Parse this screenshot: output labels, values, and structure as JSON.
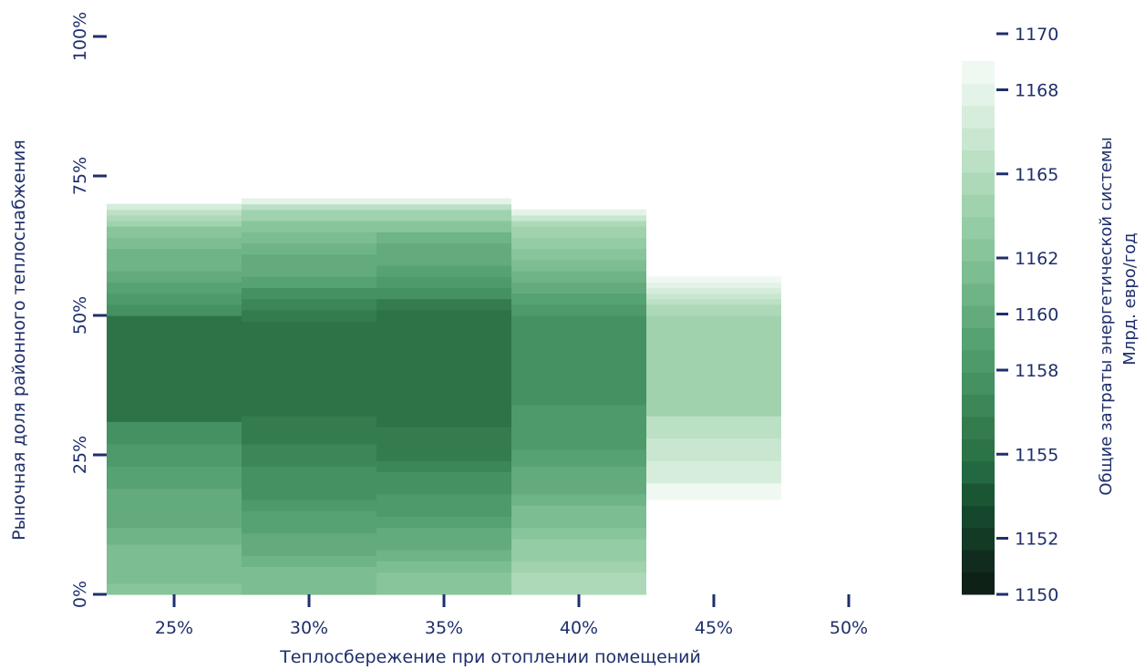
{
  "chart_data": {
    "type": "heatmap",
    "xlabel": "Теплосбережение при отоплении помещений",
    "ylabel": "Рыночная доля районного теплоснабжения",
    "x_categories": [
      "25%",
      "30%",
      "35%",
      "40%",
      "45%",
      "50%"
    ],
    "x_values": [
      25,
      30,
      35,
      40,
      45,
      50
    ],
    "y_ticks": [
      "0%",
      "25%",
      "50%",
      "75%",
      "100%"
    ],
    "y_tick_values": [
      0,
      25,
      50,
      75,
      100
    ],
    "ylim": [
      0,
      100
    ],
    "colorbar": {
      "label_line1": "Общие затраты энергетической системы",
      "label_line2": "Млрд. евро/год",
      "range": [
        1150,
        1170
      ],
      "ticks": [
        "1150",
        "1152",
        "1155",
        "1158",
        "1160",
        "1162",
        "1165",
        "1168",
        "1170"
      ],
      "tick_values": [
        1150,
        1152,
        1155,
        1158,
        1160,
        1162,
        1165,
        1168,
        1170
      ],
      "bins": 24,
      "colors": [
        "#0e2117",
        "#112b1e",
        "#123a25",
        "#14472b",
        "#1a5634",
        "#226840",
        "#2c7448",
        "#347c4e",
        "#3c8658",
        "#459161",
        "#4e9a6a",
        "#57a272",
        "#63ab7c",
        "#6fb486",
        "#7cbd91",
        "#88c59b",
        "#94cca5",
        "#a0d2ae",
        "#add9b8",
        "#bbe0c4",
        "#c9e7d0",
        "#d6eddb",
        "#e3f3e7",
        "#f0f8f2"
      ]
    },
    "columns": [
      {
        "x": "25%",
        "cells": [
          {
            "y0": 0,
            "y1": 2,
            "v": 1162.5
          },
          {
            "y0": 2,
            "y1": 5,
            "v": 1162.3
          },
          {
            "y0": 5,
            "y1": 9,
            "v": 1161.8
          },
          {
            "y0": 9,
            "y1": 12,
            "v": 1161.2
          },
          {
            "y0": 12,
            "y1": 15,
            "v": 1160.8
          },
          {
            "y0": 15,
            "y1": 19,
            "v": 1160.2
          },
          {
            "y0": 19,
            "y1": 23,
            "v": 1159.6
          },
          {
            "y0": 23,
            "y1": 27,
            "v": 1158.9
          },
          {
            "y0": 27,
            "y1": 31,
            "v": 1158.2
          },
          {
            "y0": 31,
            "y1": 37,
            "v": 1155.8
          },
          {
            "y0": 37,
            "y1": 43,
            "v": 1155.0
          },
          {
            "y0": 43,
            "y1": 50,
            "v": 1155.8
          },
          {
            "y0": 50,
            "y1": 52,
            "v": 1157.8
          },
          {
            "y0": 52,
            "y1": 54,
            "v": 1158.5
          },
          {
            "y0": 54,
            "y1": 56,
            "v": 1159.2
          },
          {
            "y0": 56,
            "y1": 58,
            "v": 1160.2
          },
          {
            "y0": 58,
            "y1": 60,
            "v": 1161.0
          },
          {
            "y0": 60,
            "y1": 62,
            "v": 1161.5
          },
          {
            "y0": 62,
            "y1": 64,
            "v": 1162.3
          },
          {
            "y0": 64,
            "y1": 66,
            "v": 1163.2
          },
          {
            "y0": 66,
            "y1": 67,
            "v": 1164.2
          },
          {
            "y0": 67,
            "y1": 68,
            "v": 1165.2
          },
          {
            "y0": 68,
            "y1": 69,
            "v": 1166.5
          },
          {
            "y0": 69,
            "y1": 70,
            "v": 1168.2
          }
        ]
      },
      {
        "x": "30%",
        "cells": [
          {
            "y0": 0,
            "y1": 2,
            "v": 1162.3
          },
          {
            "y0": 2,
            "y1": 5,
            "v": 1161.8
          },
          {
            "y0": 5,
            "y1": 7,
            "v": 1161.2
          },
          {
            "y0": 7,
            "y1": 9,
            "v": 1160.8
          },
          {
            "y0": 9,
            "y1": 11,
            "v": 1160.2
          },
          {
            "y0": 11,
            "y1": 13,
            "v": 1159.8
          },
          {
            "y0": 13,
            "y1": 15,
            "v": 1159.2
          },
          {
            "y0": 15,
            "y1": 17,
            "v": 1158.8
          },
          {
            "y0": 17,
            "y1": 20,
            "v": 1158.2
          },
          {
            "y0": 20,
            "y1": 23,
            "v": 1157.5
          },
          {
            "y0": 23,
            "y1": 27,
            "v": 1156.8
          },
          {
            "y0": 27,
            "y1": 32,
            "v": 1156.0
          },
          {
            "y0": 32,
            "y1": 38,
            "v": 1155.0
          },
          {
            "y0": 38,
            "y1": 49,
            "v": 1155.0
          },
          {
            "y0": 49,
            "y1": 51,
            "v": 1156.0
          },
          {
            "y0": 51,
            "y1": 53,
            "v": 1157.2
          },
          {
            "y0": 53,
            "y1": 55,
            "v": 1158.2
          },
          {
            "y0": 55,
            "y1": 57,
            "v": 1159.2
          },
          {
            "y0": 57,
            "y1": 59,
            "v": 1160.0
          },
          {
            "y0": 59,
            "y1": 61,
            "v": 1160.8
          },
          {
            "y0": 61,
            "y1": 63,
            "v": 1161.5
          },
          {
            "y0": 63,
            "y1": 65,
            "v": 1162.3
          },
          {
            "y0": 65,
            "y1": 67,
            "v": 1163.2
          },
          {
            "y0": 67,
            "y1": 69,
            "v": 1164.5
          },
          {
            "y0": 69,
            "y1": 70,
            "v": 1166.2
          },
          {
            "y0": 70,
            "y1": 71,
            "v": 1168.5
          }
        ]
      },
      {
        "x": "35%",
        "cells": [
          {
            "y0": 0,
            "y1": 2,
            "v": 1163.2
          },
          {
            "y0": 2,
            "y1": 4,
            "v": 1162.6
          },
          {
            "y0": 4,
            "y1": 6,
            "v": 1161.8
          },
          {
            "y0": 6,
            "y1": 8,
            "v": 1161.2
          },
          {
            "y0": 8,
            "y1": 10,
            "v": 1160.6
          },
          {
            "y0": 10,
            "y1": 12,
            "v": 1160.0
          },
          {
            "y0": 12,
            "y1": 14,
            "v": 1159.5
          },
          {
            "y0": 14,
            "y1": 16,
            "v": 1159.0
          },
          {
            "y0": 16,
            "y1": 18,
            "v": 1158.6
          },
          {
            "y0": 18,
            "y1": 20,
            "v": 1158.2
          },
          {
            "y0": 20,
            "y1": 22,
            "v": 1157.6
          },
          {
            "y0": 22,
            "y1": 24,
            "v": 1157.0
          },
          {
            "y0": 24,
            "y1": 27,
            "v": 1156.6
          },
          {
            "y0": 27,
            "y1": 30,
            "v": 1156.2
          },
          {
            "y0": 30,
            "y1": 33,
            "v": 1155.8
          },
          {
            "y0": 33,
            "y1": 49,
            "v": 1155.0
          },
          {
            "y0": 49,
            "y1": 51,
            "v": 1155.6
          },
          {
            "y0": 51,
            "y1": 53,
            "v": 1156.6
          },
          {
            "y0": 53,
            "y1": 55,
            "v": 1157.6
          },
          {
            "y0": 55,
            "y1": 57,
            "v": 1158.6
          },
          {
            "y0": 57,
            "y1": 59,
            "v": 1159.4
          },
          {
            "y0": 59,
            "y1": 61,
            "v": 1160.2
          },
          {
            "y0": 61,
            "y1": 63,
            "v": 1160.8
          },
          {
            "y0": 63,
            "y1": 65,
            "v": 1161.6
          },
          {
            "y0": 65,
            "y1": 67,
            "v": 1162.6
          },
          {
            "y0": 67,
            "y1": 69,
            "v": 1164.2
          },
          {
            "y0": 69,
            "y1": 70,
            "v": 1166.2
          },
          {
            "y0": 70,
            "y1": 71,
            "v": 1168.5
          }
        ]
      },
      {
        "x": "40%",
        "cells": [
          {
            "y0": 0,
            "y1": 1.5,
            "v": 1165.8
          },
          {
            "y0": 1.5,
            "y1": 4,
            "v": 1165.2
          },
          {
            "y0": 4,
            "y1": 6,
            "v": 1164.6
          },
          {
            "y0": 6,
            "y1": 8,
            "v": 1164.0
          },
          {
            "y0": 8,
            "y1": 10,
            "v": 1163.4
          },
          {
            "y0": 10,
            "y1": 12,
            "v": 1162.9
          },
          {
            "y0": 12,
            "y1": 14,
            "v": 1162.4
          },
          {
            "y0": 14,
            "y1": 16,
            "v": 1161.8
          },
          {
            "y0": 16,
            "y1": 18,
            "v": 1161.2
          },
          {
            "y0": 18,
            "y1": 20,
            "v": 1160.6
          },
          {
            "y0": 20,
            "y1": 23,
            "v": 1160.0
          },
          {
            "y0": 23,
            "y1": 26,
            "v": 1159.6
          },
          {
            "y0": 26,
            "y1": 30,
            "v": 1159.0
          },
          {
            "y0": 30,
            "y1": 34,
            "v": 1158.6
          },
          {
            "y0": 34,
            "y1": 50,
            "v": 1157.8
          },
          {
            "y0": 50,
            "y1": 52,
            "v": 1158.6
          },
          {
            "y0": 52,
            "y1": 54,
            "v": 1159.4
          },
          {
            "y0": 54,
            "y1": 56,
            "v": 1160.2
          },
          {
            "y0": 56,
            "y1": 58,
            "v": 1161.0
          },
          {
            "y0": 58,
            "y1": 60,
            "v": 1161.8
          },
          {
            "y0": 60,
            "y1": 62,
            "v": 1162.6
          },
          {
            "y0": 62,
            "y1": 64,
            "v": 1163.4
          },
          {
            "y0": 64,
            "y1": 66,
            "v": 1164.4
          },
          {
            "y0": 66,
            "y1": 67,
            "v": 1165.4
          },
          {
            "y0": 67,
            "y1": 68,
            "v": 1166.8
          },
          {
            "y0": 68,
            "y1": 69,
            "v": 1168.5
          }
        ]
      },
      {
        "x": "45%",
        "cells": [
          {
            "y0": 17,
            "y1": 20,
            "v": 1169.2
          },
          {
            "y0": 20,
            "y1": 24,
            "v": 1168.0
          },
          {
            "y0": 24,
            "y1": 28,
            "v": 1167.2
          },
          {
            "y0": 28,
            "y1": 32,
            "v": 1166.2
          },
          {
            "y0": 32,
            "y1": 40,
            "v": 1164.8
          },
          {
            "y0": 40,
            "y1": 46,
            "v": 1164.2
          },
          {
            "y0": 46,
            "y1": 50,
            "v": 1164.8
          },
          {
            "y0": 50,
            "y1": 52,
            "v": 1165.4
          },
          {
            "y0": 52,
            "y1": 53,
            "v": 1166.2
          },
          {
            "y0": 53,
            "y1": 54,
            "v": 1166.8
          },
          {
            "y0": 54,
            "y1": 55,
            "v": 1167.6
          },
          {
            "y0": 55,
            "y1": 56,
            "v": 1168.6
          },
          {
            "y0": 56,
            "y1": 57,
            "v": 1169.4
          }
        ]
      },
      {
        "x": "50%",
        "cells": []
      }
    ]
  }
}
